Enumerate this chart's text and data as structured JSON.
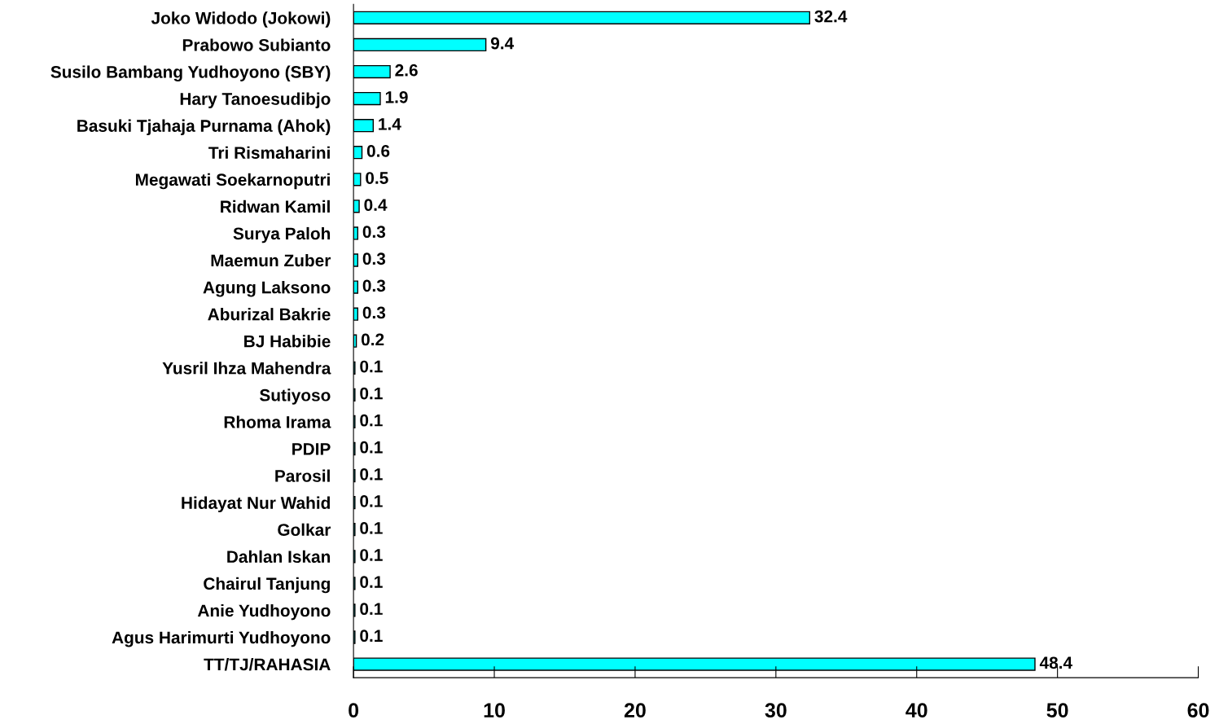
{
  "chart_data": {
    "type": "bar",
    "orientation": "horizontal",
    "categories": [
      "Joko Widodo (Jokowi)",
      "Prabowo Subianto",
      "Susilo Bambang Yudhoyono (SBY)",
      "Hary Tanoesudibjo",
      "Basuki Tjahaja Purnama (Ahok)",
      "Tri Rismaharini",
      "Megawati Soekarnoputri",
      "Ridwan Kamil",
      "Surya Paloh",
      "Maemun Zuber",
      "Agung Laksono",
      "Aburizal Bakrie",
      "BJ Habibie",
      "Yusril Ihza Mahendra",
      "Sutiyoso",
      "Rhoma Irama",
      "PDIP",
      "Parosil",
      "Hidayat Nur Wahid",
      "Golkar",
      "Dahlan Iskan",
      "Chairul Tanjung",
      "Anie Yudhoyono",
      "Agus Harimurti Yudhoyono",
      "TT/TJ/RAHASIA"
    ],
    "values": [
      32.4,
      9.4,
      2.6,
      1.9,
      1.4,
      0.6,
      0.5,
      0.4,
      0.3,
      0.3,
      0.3,
      0.3,
      0.2,
      0.1,
      0.1,
      0.1,
      0.1,
      0.1,
      0.1,
      0.1,
      0.1,
      0.1,
      0.1,
      0.1,
      48.4
    ],
    "color": "#00ffff",
    "xlim": [
      0,
      60
    ],
    "xticks": [
      0,
      10,
      20,
      30,
      40,
      50,
      60
    ],
    "data_labels": true,
    "grid": false,
    "legend": false
  }
}
